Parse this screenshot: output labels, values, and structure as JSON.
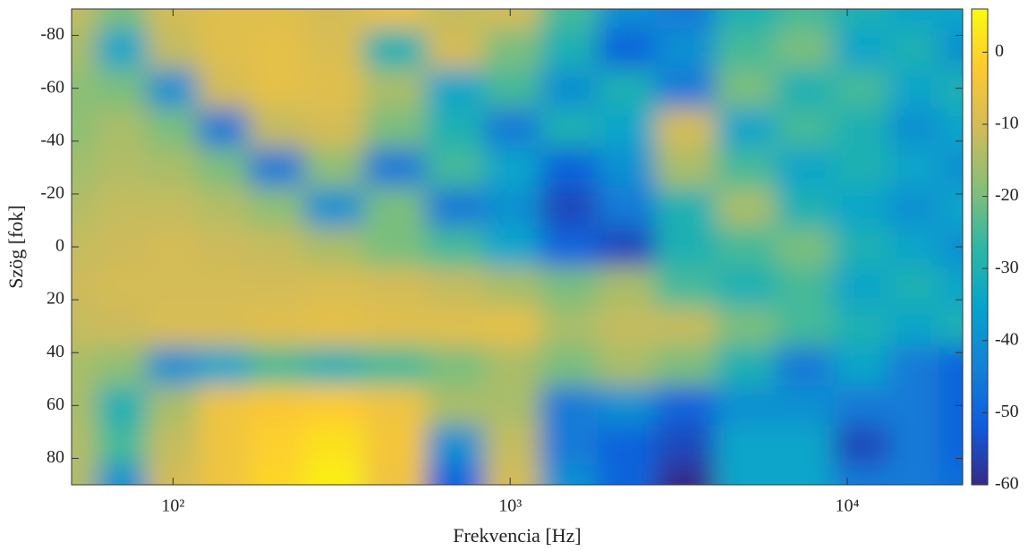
{
  "chart_data": {
    "type": "heatmap",
    "xlabel": "Frekvencia [Hz]",
    "ylabel": "Szög [fok]",
    "x": [
      50,
      70,
      100,
      140,
      200,
      300,
      450,
      700,
      1000,
      1500,
      2200,
      3300,
      5000,
      7500,
      11000,
      16000,
      22000
    ],
    "y": [
      -90,
      -75,
      -60,
      -45,
      -30,
      -15,
      0,
      15,
      30,
      45,
      60,
      75,
      90
    ],
    "values": [
      [
        -12,
        -20,
        -10,
        -8,
        -8,
        -10,
        -6,
        -12,
        -10,
        -25,
        -40,
        -45,
        -30,
        -25,
        -30,
        -35,
        -35
      ],
      [
        -15,
        -35,
        -12,
        -8,
        -7,
        -9,
        -30,
        -10,
        -20,
        -30,
        -50,
        -40,
        -25,
        -20,
        -35,
        -30,
        -40
      ],
      [
        -18,
        -20,
        -40,
        -10,
        -7,
        -8,
        -15,
        -35,
        -25,
        -40,
        -30,
        -45,
        -20,
        -30,
        -25,
        -35,
        -30
      ],
      [
        -18,
        -15,
        -20,
        -45,
        -12,
        -10,
        -20,
        -30,
        -45,
        -30,
        -35,
        -10,
        -35,
        -25,
        -30,
        -40,
        -35
      ],
      [
        -16,
        -14,
        -15,
        -20,
        -45,
        -18,
        -45,
        -25,
        -35,
        -50,
        -40,
        -15,
        -25,
        -35,
        -30,
        -35,
        -40
      ],
      [
        -14,
        -12,
        -12,
        -14,
        -18,
        -40,
        -20,
        -45,
        -40,
        -55,
        -45,
        -30,
        -15,
        -30,
        -35,
        -40,
        -35
      ],
      [
        -12,
        -11,
        -10,
        -11,
        -12,
        -15,
        -20,
        -25,
        -35,
        -50,
        -55,
        -30,
        -25,
        -20,
        -30,
        -35,
        -40
      ],
      [
        -11,
        -10,
        -10,
        -10,
        -10,
        -9,
        -10,
        -12,
        -15,
        -20,
        -15,
        -25,
        -30,
        -25,
        -35,
        -30,
        -35
      ],
      [
        -12,
        -11,
        -9,
        -9,
        -8,
        -7,
        -8,
        -8,
        -7,
        -15,
        -12,
        -12,
        -20,
        -25,
        -30,
        -35,
        -30
      ],
      [
        -15,
        -18,
        -40,
        -35,
        -25,
        -30,
        -25,
        -20,
        -15,
        -20,
        -15,
        -20,
        -30,
        -45,
        -35,
        -45,
        -50
      ],
      [
        -15,
        -30,
        -15,
        -5,
        -3,
        -2,
        -5,
        -15,
        -15,
        -45,
        -40,
        -50,
        -40,
        -40,
        -45,
        -45,
        -50
      ],
      [
        -14,
        -25,
        -12,
        -5,
        -1,
        2,
        -4,
        -40,
        -12,
        -45,
        -50,
        -55,
        -35,
        -35,
        -55,
        -45,
        -50
      ],
      [
        -14,
        -40,
        -10,
        -5,
        0,
        4,
        -5,
        -50,
        -10,
        -40,
        -50,
        -60,
        -35,
        -35,
        -45,
        -45,
        -48
      ]
    ],
    "xlim": [
      50,
      22000
    ],
    "xscale": "log",
    "xticks": [
      {
        "value": 100,
        "label": "10²"
      },
      {
        "value": 1000,
        "label": "10³"
      },
      {
        "value": 10000,
        "label": "10⁴"
      }
    ],
    "ylim": [
      -90,
      90
    ],
    "y_direction": "reverse",
    "yticks": [
      -80,
      -60,
      -40,
      -20,
      0,
      20,
      40,
      60,
      80
    ],
    "colormap": "parula",
    "clim": [
      -60,
      6
    ],
    "cticks": [
      0,
      -10,
      -20,
      -30,
      -40,
      -50,
      -60
    ]
  }
}
